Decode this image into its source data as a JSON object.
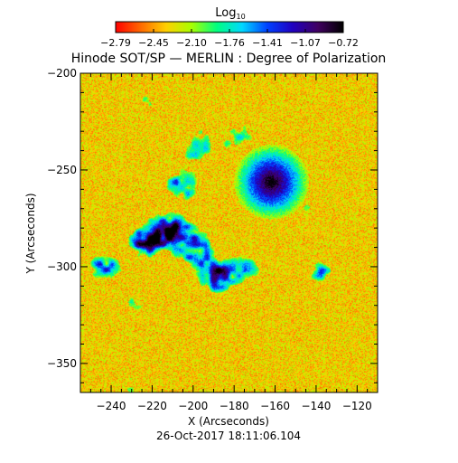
{
  "chart_data": {
    "type": "heatmap",
    "title": "Hinode SOT/SP — MERLIN : Degree of Polarization",
    "xlabel": "X (Arcseconds)",
    "ylabel": "Y (Arcseconds)",
    "timestamp": "26-Oct-2017 18:11:06.104",
    "xlim": [
      -255,
      -110
    ],
    "ylim": [
      -365,
      -200
    ],
    "x_ticks": [
      -240,
      -220,
      -200,
      -180,
      -160,
      -140,
      -120
    ],
    "y_ticks": [
      -200,
      -250,
      -300,
      -350
    ],
    "colorbar": {
      "title": "Log",
      "title_sub": "10",
      "range": [
        -2.79,
        -0.72
      ],
      "tick_labels": [
        "−2.79",
        "−2.45",
        "−2.10",
        "−1.76",
        "−1.41",
        "−1.07",
        "−0.72"
      ],
      "colors": [
        "#ff0000",
        "#ff6a00",
        "#ffd000",
        "#a8ff00",
        "#00ff80",
        "#00d8ff",
        "#0040ff",
        "#2000c0",
        "#400060",
        "#000000"
      ]
    },
    "features": {
      "sunspot_center": [
        -162,
        -256
      ],
      "sunspot_radius_arcsec": 7,
      "network_regions": [
        {
          "x": -198,
          "y": -237,
          "strength": 0.6
        },
        {
          "x": -178,
          "y": -233,
          "strength": 0.55
        },
        {
          "x": -205,
          "y": -258,
          "strength": 0.5
        },
        {
          "x": -212,
          "y": -282,
          "strength": 0.75
        },
        {
          "x": -225,
          "y": -285,
          "strength": 0.6
        },
        {
          "x": -200,
          "y": -290,
          "strength": 0.7
        },
        {
          "x": -188,
          "y": -305,
          "strength": 0.65
        },
        {
          "x": -175,
          "y": -300,
          "strength": 0.55
        },
        {
          "x": -245,
          "y": -300,
          "strength": 0.55
        },
        {
          "x": -230,
          "y": -315,
          "strength": 0.4
        },
        {
          "x": -138,
          "y": -305,
          "strength": 0.45
        },
        {
          "x": -148,
          "y": -272,
          "strength": 0.35
        },
        {
          "x": -140,
          "y": -230,
          "strength": 0.3
        },
        {
          "x": -230,
          "y": -362,
          "strength": 0.3
        },
        {
          "x": -222,
          "y": -215,
          "strength": 0.25
        }
      ]
    }
  }
}
